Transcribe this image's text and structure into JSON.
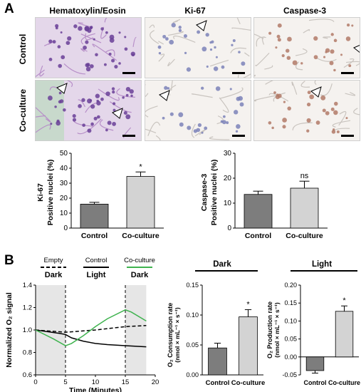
{
  "figure": {
    "panel_a_letter": "A",
    "panel_b_letter": "B",
    "columns": [
      "Hematoxylin/Eosin",
      "Ki-67",
      "Caspase-3"
    ],
    "rows": [
      "Control",
      "Co-culture"
    ],
    "colors": {
      "he_bg": "#e4d7ea",
      "he_nuclei": "#6a3f98",
      "ihc_bg": "#f5f2ef",
      "ki67_stain": "#7b83b8",
      "casp_stain": "#b27a67",
      "dark_bar": "#7d7d7d",
      "light_bar": "#d3d3d3",
      "green_line": "#3fb34f",
      "shade": "#e6e6e6"
    }
  },
  "chart_data": [
    {
      "type": "bar",
      "name": "ki67",
      "categories": [
        "Control",
        "Co-culture"
      ],
      "values": [
        16,
        34.5
      ],
      "errors": [
        1.2,
        3
      ],
      "significance": [
        "",
        "*"
      ],
      "row_label": "Ki-67",
      "ylabel": "Positive nuclei (%)",
      "ylim": [
        0,
        50
      ],
      "yticks": [
        "0",
        "10",
        "20",
        "30",
        "40",
        "50"
      ]
    },
    {
      "type": "bar",
      "name": "casp3",
      "categories": [
        "Control",
        "Co-culture"
      ],
      "values": [
        13.5,
        16
      ],
      "errors": [
        1.3,
        2.8
      ],
      "significance": [
        "",
        "ns"
      ],
      "row_label": "Caspase-3",
      "ylabel": "Positive nuclei (%)",
      "ylim": [
        0,
        30
      ],
      "yticks": [
        "0",
        "10",
        "20",
        "30"
      ]
    },
    {
      "type": "line",
      "name": "o2signal",
      "ylabel": "Normalized O₂ signal",
      "xlabel": "Time (Minutes)",
      "xlim": [
        0,
        20
      ],
      "ylim": [
        0.6,
        1.4
      ],
      "xticks": [
        "0",
        "5",
        "10",
        "15",
        "20"
      ],
      "yticks": [
        "0.6",
        "0.8",
        "1.0",
        "1.2",
        "1.4"
      ],
      "phases": [
        {
          "label": "Dark",
          "from": 0,
          "to": 5,
          "shaded": true
        },
        {
          "label": "Light",
          "from": 5,
          "to": 15,
          "shaded": false
        },
        {
          "label": "Dark",
          "from": 15,
          "to": 18.5,
          "shaded": true
        }
      ],
      "legend": [
        {
          "label": "Empty",
          "style": "dashed"
        },
        {
          "label": "Control",
          "style": "solid-black"
        },
        {
          "label": "Co-culture",
          "style": "solid-green"
        }
      ],
      "series": [
        {
          "name": "Empty",
          "x": [
            0,
            5,
            10,
            15,
            18.5
          ],
          "y": [
            1.0,
            0.98,
            1.0,
            1.03,
            1.04
          ]
        },
        {
          "name": "Control",
          "x": [
            0,
            4,
            5,
            6,
            8,
            10,
            12,
            15,
            18.5
          ],
          "y": [
            1.0,
            0.97,
            0.96,
            0.93,
            0.9,
            0.88,
            0.87,
            0.86,
            0.85
          ]
        },
        {
          "name": "Co-culture",
          "x": [
            0,
            3,
            5,
            6,
            8,
            10,
            12,
            15,
            16,
            18.5
          ],
          "y": [
            1.0,
            0.92,
            0.86,
            0.88,
            0.95,
            1.03,
            1.1,
            1.18,
            1.16,
            1.08
          ]
        }
      ]
    },
    {
      "type": "bar",
      "name": "o2consumption",
      "header": "Dark",
      "categories": [
        "Control",
        "Co-culture"
      ],
      "values": [
        0.045,
        0.097
      ],
      "errors": [
        0.008,
        0.012
      ],
      "significance": [
        "",
        "*"
      ],
      "ylabel": "O₂ Consumption rate",
      "yunit": "(nmol × mL⁻¹ × s⁻¹)",
      "ylim": [
        0,
        0.15
      ],
      "yticks": [
        "0.00",
        "0.05",
        "0.10",
        "0.15"
      ]
    },
    {
      "type": "bar",
      "name": "o2production",
      "header": "Light",
      "categories": [
        "Control",
        "Co-culture"
      ],
      "values": [
        -0.038,
        0.127
      ],
      "errors": [
        0.007,
        0.015
      ],
      "significance": [
        "",
        "*"
      ],
      "ylabel": "O₂ Production rate",
      "yunit": "(nmol × mL⁻¹ × s⁻¹)",
      "ylim": [
        -0.05,
        0.2
      ],
      "yticks": [
        "-0.05",
        "0.00",
        "0.05",
        "0.10",
        "0.15",
        "0.20"
      ]
    }
  ]
}
